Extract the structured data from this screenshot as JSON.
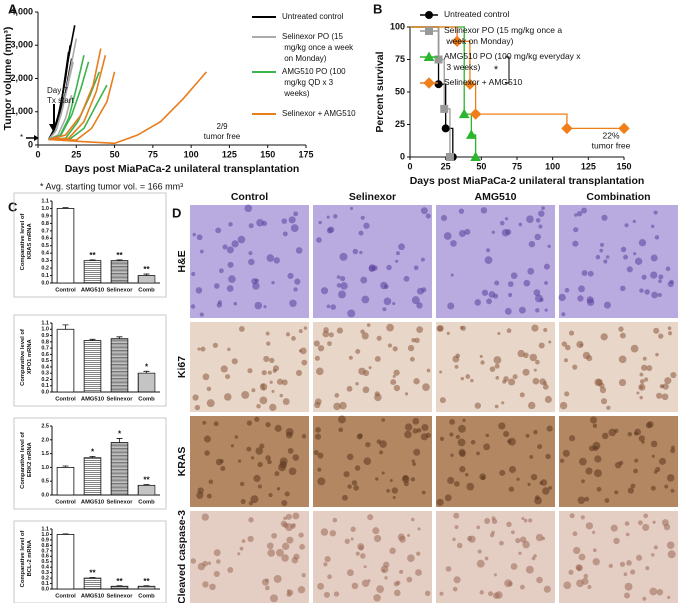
{
  "panel_labels": [
    "A",
    "B",
    "C",
    "D"
  ],
  "chart_data": [
    {
      "type": "line",
      "ylabel": "Tumor volume (mm³)",
      "xlabel": "Days post MiaPaCa-2 unilateral transplantation",
      "xlim": [
        0,
        175
      ],
      "xticks": [
        0,
        25,
        50,
        75,
        100,
        125,
        150,
        175
      ],
      "ylim": [
        0,
        4000
      ],
      "yticks": [
        0,
        {
          "value": 1000,
          "label": "1,000"
        },
        {
          "value": 2000,
          "label": "2,000"
        },
        {
          "value": 3000,
          "label": "3,000"
        },
        {
          "value": 4000,
          "label": "4,000"
        }
      ],
      "series": [
        {
          "name": "Untreated control",
          "color": "#000000",
          "x": [
            7,
            10,
            14,
            18,
            21
          ],
          "values": [
            166,
            400,
            1000,
            2000,
            3000
          ]
        },
        {
          "name": "Untreated control",
          "color": "#000000",
          "x": [
            7,
            11,
            15,
            19,
            24
          ],
          "values": [
            166,
            500,
            1200,
            2400,
            3600
          ]
        },
        {
          "name": "Untreated control",
          "color": "#000000",
          "x": [
            7,
            10,
            14,
            18,
            22
          ],
          "values": [
            166,
            350,
            800,
            1600,
            2600
          ]
        },
        {
          "name": "Untreated control",
          "color": "#000000",
          "x": [
            7,
            12,
            16,
            20
          ],
          "values": [
            166,
            600,
            1500,
            2800
          ]
        },
        {
          "name": "Selinexor PO (15 mg/kg once a week on Monday)",
          "color": "#aaaaaa",
          "x": [
            7,
            12,
            16,
            20,
            25
          ],
          "values": [
            166,
            450,
            1100,
            2000,
            3200
          ]
        },
        {
          "name": "Selinexor PO (15 mg/kg once a week on Monday)",
          "color": "#aaaaaa",
          "x": [
            7,
            11,
            15,
            19,
            23
          ],
          "values": [
            166,
            380,
            900,
            1700,
            2500
          ]
        },
        {
          "name": "Selinexor PO (15 mg/kg once a week on Monday)",
          "color": "#aaaaaa",
          "x": [
            7,
            13,
            18,
            22
          ],
          "values": [
            166,
            300,
            800,
            1500
          ]
        },
        {
          "name": "AMG510 PO (100 mg/kg QD x 3 weeks)",
          "color": "#3cb44b",
          "x": [
            7,
            15,
            22,
            28,
            33
          ],
          "values": [
            166,
            300,
            900,
            1700,
            2500
          ]
        },
        {
          "name": "AMG510 PO (100 mg/kg QD x 3 weeks)",
          "color": "#3cb44b",
          "x": [
            7,
            18,
            26,
            34,
            40
          ],
          "values": [
            166,
            200,
            700,
            1500,
            2200
          ]
        },
        {
          "name": "AMG510 PO (100 mg/kg QD x 3 weeks)",
          "color": "#3cb44b",
          "x": [
            7,
            20,
            30,
            38,
            45
          ],
          "values": [
            166,
            150,
            500,
            1200,
            1800
          ]
        },
        {
          "name": "AMG510 PO (100 mg/kg QD x 3 weeks)",
          "color": "#3cb44b",
          "x": [
            7,
            14,
            20,
            25,
            30
          ],
          "values": [
            166,
            250,
            800,
            1700,
            2700
          ]
        },
        {
          "name": "Selinexor + AMG510",
          "color": "#e87d1e",
          "x": [
            7,
            20,
            30,
            38,
            44
          ],
          "values": [
            166,
            200,
            700,
            1600,
            2700
          ]
        },
        {
          "name": "Selinexor + AMG510",
          "color": "#e87d1e",
          "x": [
            7,
            18,
            28,
            36,
            41
          ],
          "values": [
            166,
            300,
            900,
            1800,
            2900
          ]
        },
        {
          "name": "Selinexor + AMG510",
          "color": "#e87d1e",
          "x": [
            7,
            25,
            35,
            45,
            50
          ],
          "values": [
            166,
            150,
            500,
            1300,
            2200
          ]
        },
        {
          "name": "Selinexor + AMG510",
          "color": "#e87d1e",
          "x": [
            7,
            30,
            50,
            65,
            80,
            95,
            110
          ],
          "values": [
            166,
            100,
            50,
            300,
            700,
            1400,
            2200
          ]
        }
      ],
      "annotations": [
        [
          "Day 7",
          "Tx start"
        ],
        [
          "*"
        ],
        [
          "2/9",
          "tumor free"
        ]
      ],
      "note": "* Avg. starting tumor vol. = 166 mm³"
    },
    {
      "type": "step",
      "ylabel": "Percent survival",
      "xlabel": "Days post MiaPaCa-2 unilateral transplantation",
      "xlim": [
        0,
        150
      ],
      "xticks": [
        0,
        25,
        50,
        75,
        100,
        125,
        150
      ],
      "ylim": [
        0,
        100
      ],
      "yticks": [
        0,
        25,
        50,
        75,
        100
      ],
      "series": [
        {
          "name": "Untreated control",
          "color": "#000000",
          "marker": "circle",
          "x": [
            0,
            20,
            25,
            30
          ],
          "values": [
            100,
            56,
            22,
            0
          ]
        },
        {
          "name": "Selinexor PO (15 mg/kg once a week on Monday)",
          "color": "#999999",
          "marker": "square",
          "x": [
            0,
            20,
            24,
            28
          ],
          "values": [
            100,
            75,
            37,
            0
          ]
        },
        {
          "name": "AMG510 PO (100 mg/kg everyday x 3 weeks)",
          "color": "#2db52d",
          "marker": "triangle",
          "x": [
            0,
            38,
            43,
            46
          ],
          "values": [
            100,
            33,
            17,
            0
          ]
        },
        {
          "name": "Selinexor + AMG510",
          "color": "#f07f1a",
          "marker": "diamond",
          "x": [
            0,
            33,
            42,
            46,
            110,
            150
          ],
          "values": [
            100,
            89,
            56,
            33,
            22,
            22
          ]
        }
      ],
      "annotations": [
        [
          "22%",
          "tumor free"
        ],
        [
          "*"
        ]
      ]
    },
    {
      "type": "bar",
      "ylabel": "Comparative level of KRAS mRNA",
      "categories": [
        "Control",
        "AMG510",
        "Selinexor",
        "Comb"
      ],
      "values": [
        1.0,
        0.3,
        0.3,
        0.1
      ],
      "errors": [
        0.01,
        0.01,
        0.01,
        0.02
      ],
      "significance": [
        null,
        "**",
        "**",
        "**"
      ],
      "bar_styles": [
        "white",
        "hlines",
        "hlines-dense",
        "dots"
      ],
      "ylim": [
        0,
        1.1
      ],
      "yticks": [
        {
          "value": 0,
          "label": "0.0"
        },
        0.1,
        0.2,
        0.3,
        0.4,
        0.5,
        0.6,
        0.7,
        0.8,
        0.9,
        {
          "value": 1,
          "label": "1.0"
        },
        1.1
      ]
    },
    {
      "type": "bar",
      "ylabel": "Comparative level of XPO1 mRNA",
      "categories": [
        "Control",
        "AMG510",
        "Selinexor",
        "Comb"
      ],
      "values": [
        1.0,
        0.82,
        0.85,
        0.3
      ],
      "errors": [
        0.07,
        0.02,
        0.03,
        0.03
      ],
      "significance": [
        null,
        null,
        null,
        "*"
      ],
      "bar_styles": [
        "white",
        "hlines",
        "hlines-dense",
        "dots"
      ],
      "ylim": [
        0,
        1.1
      ],
      "yticks": [
        {
          "value": 0,
          "label": "0.0"
        },
        0.1,
        0.2,
        0.3,
        0.4,
        0.5,
        0.6,
        0.7,
        0.8,
        0.9,
        {
          "value": 1,
          "label": "1.0"
        },
        1.1
      ]
    },
    {
      "type": "bar",
      "ylabel": "Comparative level of ERK2 mRNA",
      "categories": [
        "Control",
        "AMG510",
        "Selinexor",
        "Comb"
      ],
      "values": [
        1.0,
        1.35,
        1.9,
        0.35
      ],
      "errors": [
        0.05,
        0.05,
        0.15,
        0.03
      ],
      "significance": [
        null,
        "*",
        "*",
        "**"
      ],
      "bar_styles": [
        "white",
        "hlines",
        "hlines-dense",
        "dots"
      ],
      "ylim": [
        0,
        2.5
      ],
      "yticks": [
        {
          "value": 0,
          "label": "0.0"
        },
        0.5,
        {
          "value": 1,
          "label": "1.0"
        },
        1.5,
        {
          "value": 2,
          "label": "2.0"
        },
        2.5
      ]
    },
    {
      "type": "bar",
      "ylabel": "Comparative level of BCL-2 mRNA",
      "categories": [
        "Control",
        "AMG510",
        "Selinexor",
        "Comb"
      ],
      "values": [
        1.0,
        0.2,
        0.05,
        0.05
      ],
      "errors": [
        0.01,
        0.01,
        0.01,
        0.01
      ],
      "significance": [
        null,
        "**",
        "**",
        "**"
      ],
      "bar_styles": [
        "white",
        "hlines",
        "hlines-dense",
        "dots"
      ],
      "ylim": [
        0,
        1.1
      ],
      "yticks": [
        {
          "value": 0,
          "label": "0.0"
        },
        0.1,
        0.2,
        0.3,
        0.4,
        0.5,
        0.6,
        0.7,
        0.8,
        0.9,
        {
          "value": 1,
          "label": "1.0"
        },
        1.1
      ]
    }
  ],
  "histology": {
    "columns": [
      "Control",
      "Selinexor",
      "AMG510",
      "Combination"
    ],
    "rows": [
      "H&E",
      "Ki67",
      "KRAS",
      "Cleaved caspase-3"
    ]
  }
}
